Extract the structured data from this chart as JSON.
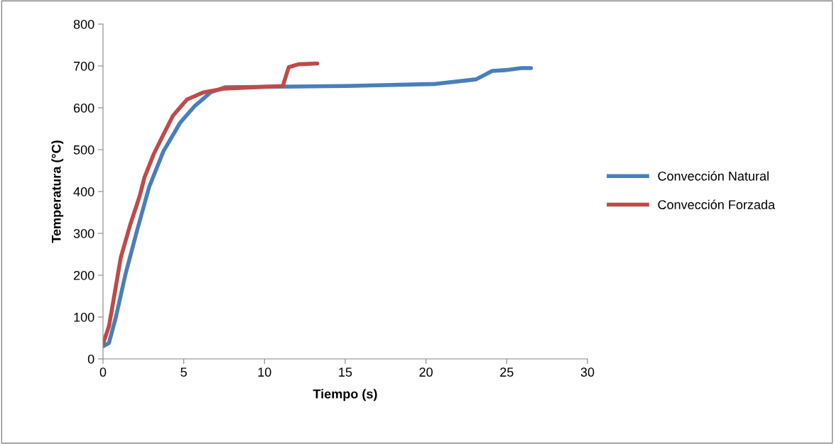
{
  "chart_data": {
    "type": "line",
    "xlabel": "Tiempo (s)",
    "ylabel": "Temperatura (°C)",
    "xlim": [
      0,
      30
    ],
    "xticks": [
      0,
      5,
      10,
      15,
      20,
      25,
      30
    ],
    "ylim": [
      0,
      800
    ],
    "yticks": [
      0,
      100,
      200,
      300,
      400,
      500,
      600,
      700,
      800
    ],
    "grid": false,
    "legend": "right",
    "marker": "none",
    "line_style": "solid",
    "series": [
      {
        "name": "Convección Natural",
        "color": "#4a7ebb",
        "x": [
          0,
          0.37,
          0.8,
          1.39,
          2.13,
          2.86,
          3.74,
          4.77,
          5.65,
          6.67,
          7.55,
          15,
          20.6,
          23.1,
          24.1,
          24.9,
          25.9,
          26.5
        ],
        "values": [
          30,
          38,
          100,
          202,
          310,
          411,
          496,
          564,
          603,
          637,
          649,
          652,
          657,
          668,
          688,
          690,
          695,
          695
        ]
      },
      {
        "name": "Convección Forzada",
        "color": "#be4b48",
        "x": [
          0,
          0.37,
          0.8,
          1.1,
          1.69,
          2.27,
          2.57,
          3.15,
          3.74,
          4.33,
          5.2,
          6.23,
          7.55,
          11.07,
          11.15,
          11.5,
          12.1,
          13.27
        ],
        "values": [
          36,
          78,
          174,
          242,
          321,
          389,
          434,
          490,
          536,
          581,
          620,
          637,
          646,
          652,
          654,
          697,
          704,
          706
        ]
      }
    ]
  }
}
